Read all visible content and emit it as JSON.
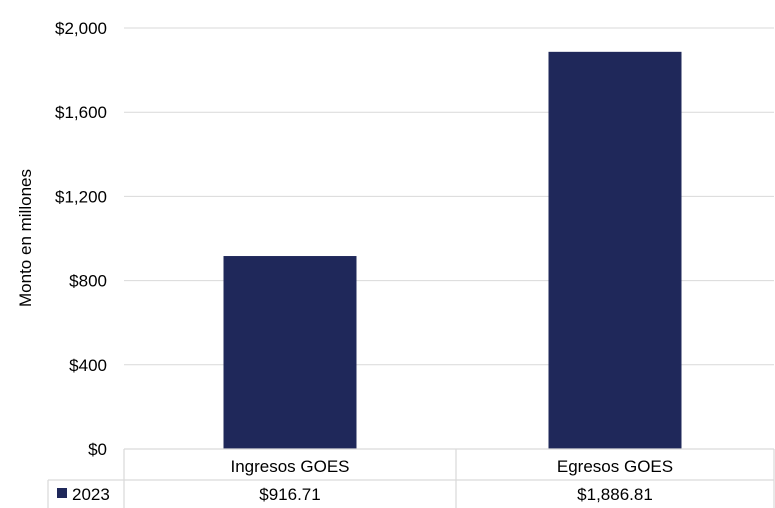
{
  "chart_data": {
    "type": "bar",
    "categories": [
      "Ingresos GOES",
      "Egresos GOES"
    ],
    "series": [
      {
        "name": "2023",
        "values": [
          916.71,
          1886.81
        ],
        "labels": [
          "$916.71",
          "$1,886.81"
        ]
      }
    ],
    "ylabel": "Monto en millones",
    "ylim": [
      0,
      2000
    ],
    "yticks": [
      0,
      400,
      800,
      1200,
      1600,
      2000
    ],
    "ytick_labels": [
      "$0",
      "$400",
      "$800",
      "$1,200",
      "$1,600",
      "$2,000"
    ],
    "grid": true,
    "legend": "data table below chart",
    "colors": {
      "bar": "#1f285a",
      "grid": "#d9d9d9",
      "table": "#d9d9d9"
    }
  }
}
